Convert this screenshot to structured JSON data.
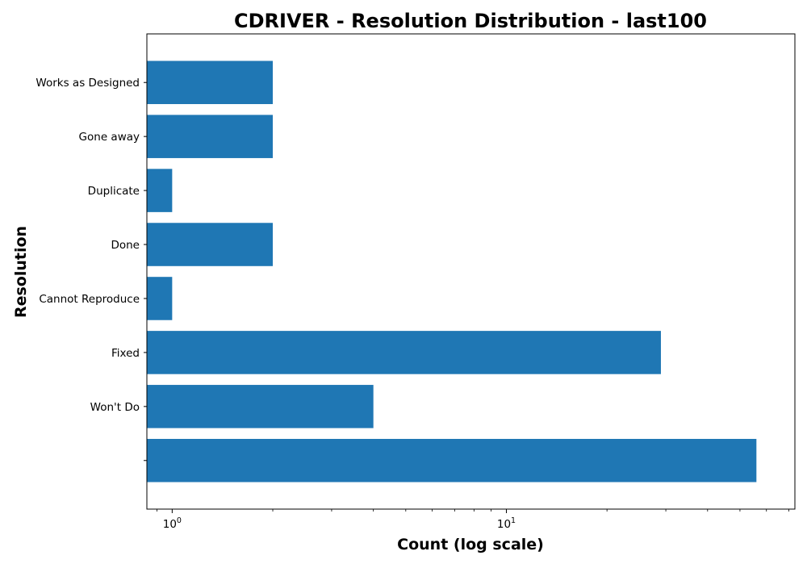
{
  "chart_data": {
    "type": "bar",
    "orientation": "horizontal",
    "title": "CDRIVER - Resolution Distribution - last100",
    "xlabel": "Count (log scale)",
    "ylabel": "Resolution",
    "x_scale": "log",
    "xlim": [
      0.84,
      73
    ],
    "x_ticks": [
      {
        "value": 1,
        "base": "10",
        "exponent": "0"
      },
      {
        "value": 10,
        "base": "10",
        "exponent": "1"
      }
    ],
    "categories": [
      "Works as Designed",
      "Gone away",
      "Duplicate",
      "Done",
      "Cannot Reproduce",
      "Fixed",
      "Won't Do",
      ""
    ],
    "values": [
      2,
      2,
      1,
      2,
      1,
      29,
      4,
      56
    ],
    "bar_color": "#1f77b4",
    "grid": false,
    "legend": "none"
  }
}
